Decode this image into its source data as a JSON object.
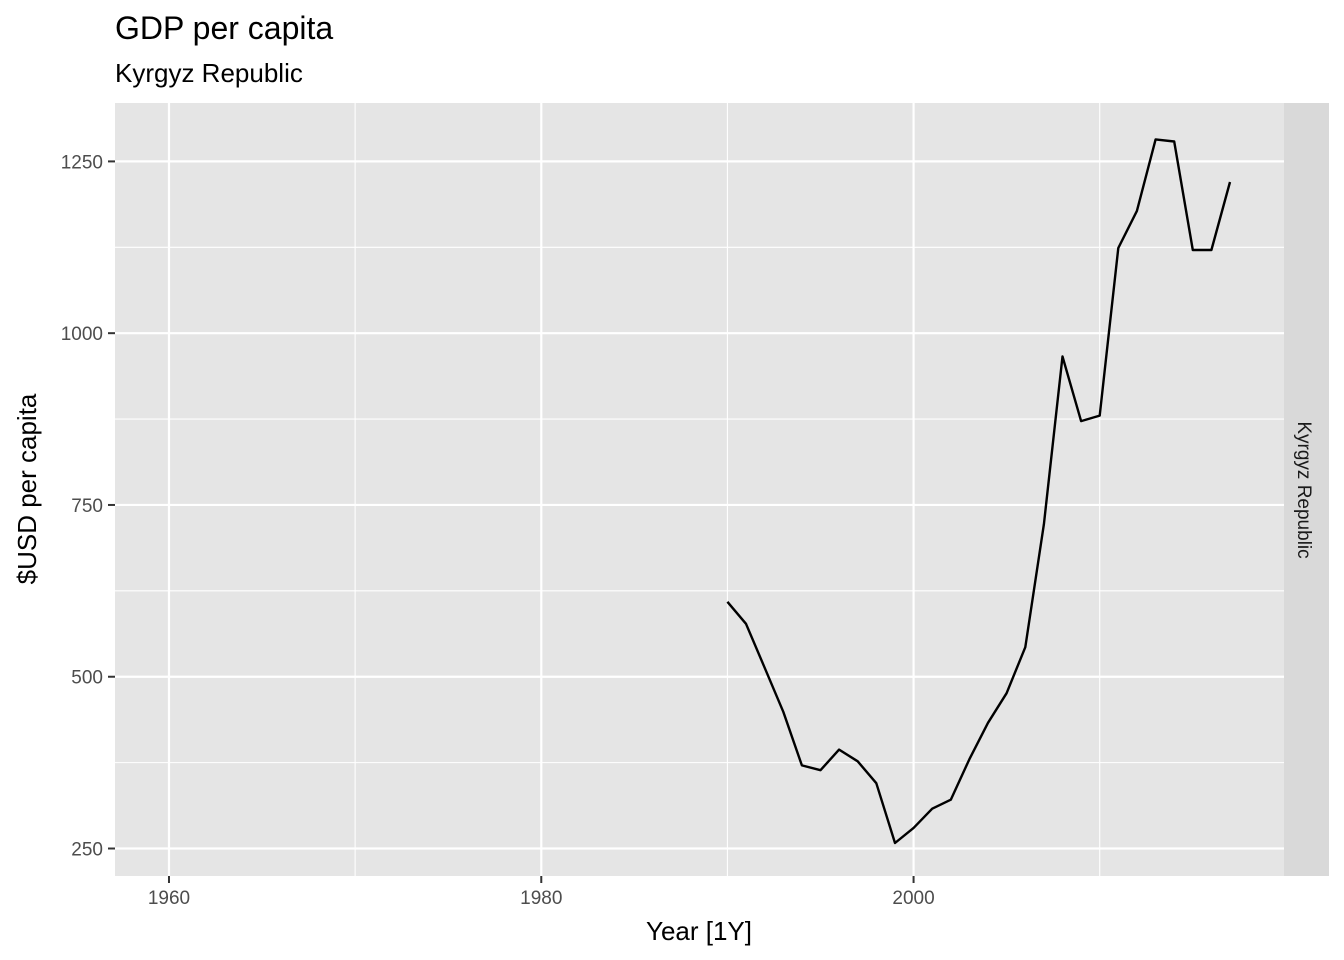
{
  "chart_data": {
    "type": "line",
    "title": "GDP per capita",
    "subtitle": "Kyrgyz Republic",
    "xlabel": "Year [1Y]",
    "ylabel": "$USD per capita",
    "facet_label": "Kyrgyz Republic",
    "xlim": [
      1957.1,
      2019.9
    ],
    "ylim": [
      210,
      1335
    ],
    "x_ticks": [
      1960,
      1980,
      2000
    ],
    "x_tick_labels": [
      "1960",
      "1980",
      "2000"
    ],
    "y_ticks": [
      250,
      500,
      750,
      1000,
      1250
    ],
    "y_tick_labels": [
      "250",
      "500",
      "750",
      "1000",
      "1250"
    ],
    "grid": true,
    "series": [
      {
        "color": "#000000",
        "x": [
          1990,
          1991,
          1992,
          1993,
          1994,
          1995,
          1996,
          1997,
          1998,
          1999,
          2000,
          2001,
          2002,
          2003,
          2004,
          2005,
          2006,
          2007,
          2008,
          2009,
          2010,
          2011,
          2012,
          2013,
          2014,
          2015,
          2016,
          2017
        ],
        "y": [
          609,
          577,
          513,
          449,
          371,
          364,
          394,
          377,
          345,
          258,
          280,
          308,
          321,
          380,
          433,
          476,
          543,
          722,
          966,
          872,
          880,
          1124,
          1178,
          1282,
          1279,
          1121,
          1121,
          1220
        ]
      }
    ]
  }
}
